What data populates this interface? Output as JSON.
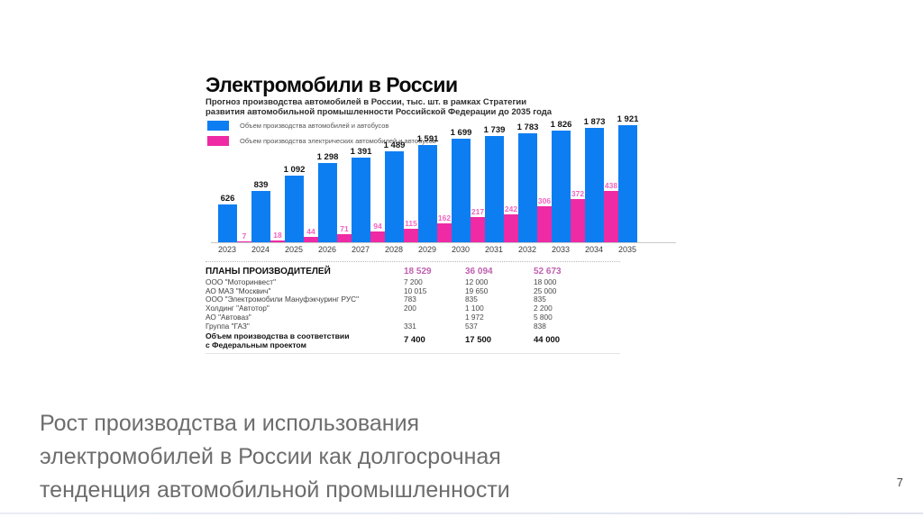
{
  "chart_data": {
    "type": "bar",
    "title": "Электромобили в России",
    "subtitle_line1": "Прогноз производства автомобилей в России, тыс. шт. в рамках Стратегии",
    "subtitle_line2": "развития автомобильной промышленности Российской Федерации до 2035 года",
    "categories": [
      2023,
      2024,
      2025,
      2026,
      2027,
      2028,
      2029,
      2030,
      2031,
      2032,
      2033,
      2034,
      2035
    ],
    "series": [
      {
        "name": "Объем производства автомобилей и автобусов",
        "color": "#0d7ef2",
        "values": [
          626,
          839,
          1092,
          1298,
          1391,
          1489,
          1591,
          1699,
          1739,
          1783,
          1826,
          1873,
          1921
        ]
      },
      {
        "name": "Объем производства электрических автомобилей и автобусов",
        "color": "#ee2aa4",
        "values": [
          7,
          18,
          44,
          71,
          94,
          115,
          162,
          217,
          242,
          306,
          372,
          438,
          null
        ]
      }
    ],
    "ylim": [
      0,
      2000
    ],
    "unit": "тыс. шт.",
    "grid": false,
    "legend_position": "top-left",
    "value_labels": true
  },
  "table": {
    "header": {
      "label": "ПЛАНЫ ПРОИЗВОДИТЕЛЕЙ",
      "values": [
        "18 529",
        "36 094",
        "52 673"
      ]
    },
    "rows": [
      {
        "label": "ООО \"Моторинвест\"",
        "values": [
          "7 200",
          "12 000",
          "18 000"
        ]
      },
      {
        "label": "АО МАЗ \"Москвич\"",
        "values": [
          "10 015",
          "19 650",
          "25 000"
        ]
      },
      {
        "label": "ООО \"Электромобили Мануфэкчуринг РУС\"",
        "values": [
          "783",
          "835",
          "835"
        ]
      },
      {
        "label": "Холдинг \"Автотор\"",
        "values": [
          "200",
          "1 100",
          "2 200"
        ]
      },
      {
        "label": "АО \"Автоваз\"",
        "values": [
          "",
          "1 972",
          "5 800"
        ]
      },
      {
        "label": "Группа \"ГАЗ\"",
        "values": [
          "331",
          "537",
          "838"
        ]
      }
    ],
    "footer": {
      "label_line1": "Объем производства в соответствии",
      "label_line2": "с Федеральным проектом",
      "values": [
        "7 400",
        "17 500",
        "44 000"
      ]
    }
  },
  "slide": {
    "caption_lines": [
      "Рост производства и использования",
      "электромобилей в России как долгосрочная",
      "тенденция автомобильной промышленности"
    ],
    "page_number": "7"
  },
  "colors": {
    "total_bar": "#0d7ef2",
    "ev_bar": "#ee2aa4",
    "ev_value_label": "#f463bf",
    "table_header_values": "#c05fae",
    "caption_text": "#6d6d6d"
  }
}
